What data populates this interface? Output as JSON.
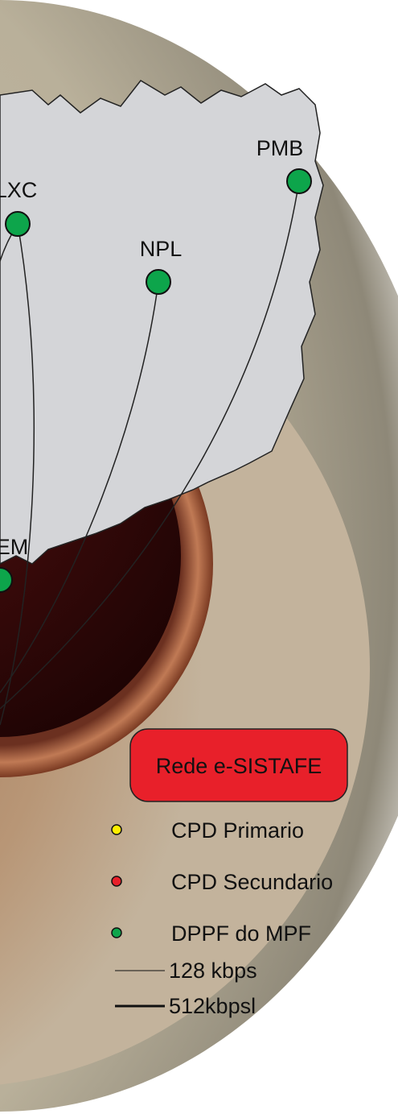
{
  "title": "Rede e-SISTAFE",
  "nodes": [
    {
      "label": "LXC"
    },
    {
      "label": "PMB"
    },
    {
      "label": "NPL"
    },
    {
      "label": "EM"
    }
  ],
  "legend": {
    "items": [
      {
        "label": "CPD Primario",
        "color": "#ffee00"
      },
      {
        "label": "CPD Secundario",
        "color": "#e8202a"
      },
      {
        "label": "DPPF do MPF",
        "color": "#0da54b"
      }
    ],
    "lines": [
      {
        "label": "128 kbps"
      },
      {
        "label": "512kbpsl"
      }
    ]
  }
}
